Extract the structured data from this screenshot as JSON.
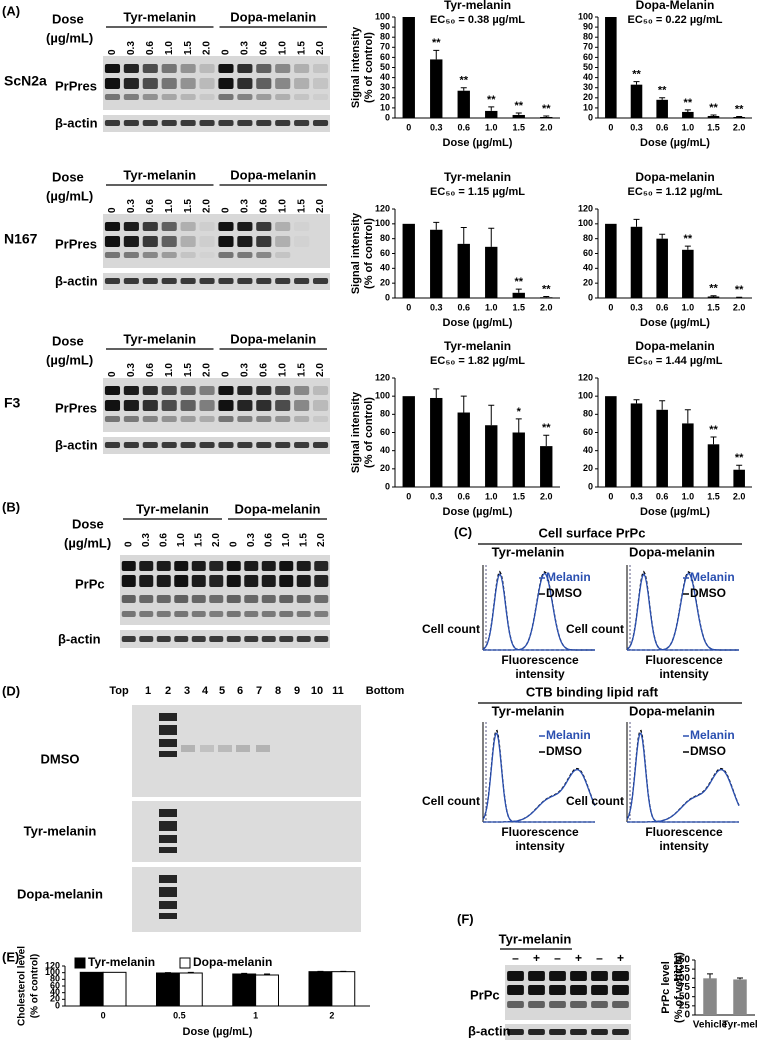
{
  "panel_labels": [
    "(A)",
    "(B)",
    "(C)",
    "(D)",
    "(E)",
    "(F)"
  ],
  "chart_data": [
    {
      "type": "bar",
      "title": "Tyr-melanin",
      "subtitle": "EC₅₀ = 0.38 µg/mL",
      "categories": [
        "0",
        "0.3",
        "0.6",
        "1.0",
        "1.5",
        "2.0"
      ],
      "values": [
        100,
        58,
        27,
        7,
        3,
        1
      ],
      "errors": [
        null,
        9,
        3,
        4,
        2,
        1
      ],
      "annotations": [
        null,
        "**",
        "**",
        "**",
        "**",
        "**"
      ],
      "ylabel": [
        "Signal intensity",
        "(% of control)"
      ],
      "xlabel": "Dose (µg/mL)",
      "ylim": [
        0,
        100
      ],
      "yticks": [
        0,
        10,
        20,
        30,
        40,
        50,
        60,
        70,
        80,
        90,
        100
      ],
      "color": "#000000"
    },
    {
      "type": "bar",
      "title": "Dopa-Melanin",
      "subtitle": "EC₅₀ = 0.22 µg/mL",
      "categories": [
        "0",
        "0.3",
        "0.6",
        "1.0",
        "1.5",
        "2.0"
      ],
      "values": [
        100,
        33,
        18,
        6,
        2,
        1
      ],
      "errors": [
        null,
        3,
        2,
        2,
        1,
        0.5
      ],
      "annotations": [
        null,
        "**",
        "**",
        "**",
        "**",
        "**"
      ],
      "xlabel": "Dose (µg/mL)",
      "ylim": [
        0,
        100
      ],
      "yticks": [
        0,
        10,
        20,
        30,
        40,
        50,
        60,
        70,
        80,
        90,
        100
      ],
      "color": "#000000"
    },
    {
      "type": "bar",
      "title": "Tyr-melanin",
      "subtitle": "EC₅₀ = 1.15 µg/mL",
      "categories": [
        "0",
        "0.3",
        "0.6",
        "1.0",
        "1.5",
        "2.0"
      ],
      "values": [
        100,
        92,
        73,
        69,
        7,
        1
      ],
      "errors": [
        null,
        10,
        22,
        25,
        5,
        1
      ],
      "annotations": [
        null,
        null,
        null,
        null,
        "**",
        "**"
      ],
      "ylabel": [
        "Signal intensity",
        "(% of control)"
      ],
      "xlabel": "Dose (µg/mL)",
      "ylim": [
        0,
        120
      ],
      "yticks": [
        0,
        20,
        40,
        60,
        80,
        100,
        120
      ],
      "color": "#000000"
    },
    {
      "type": "bar",
      "title": "Dopa-melanin",
      "subtitle": "EC₅₀ = 1.12 µg/mL",
      "categories": [
        "0",
        "0.3",
        "0.6",
        "1.0",
        "1.5",
        "2.0"
      ],
      "values": [
        100,
        96,
        80,
        65,
        2,
        0.5
      ],
      "errors": [
        null,
        10,
        6,
        5,
        1,
        0.5
      ],
      "annotations": [
        null,
        null,
        null,
        "**",
        "**",
        "**"
      ],
      "xlabel": "Dose (µg/mL)",
      "ylim": [
        0,
        120
      ],
      "yticks": [
        0,
        20,
        40,
        60,
        80,
        100,
        120
      ],
      "color": "#000000"
    },
    {
      "type": "bar",
      "title": "Tyr-melanin",
      "subtitle": "EC₅₀ = 1.82 µg/mL",
      "categories": [
        "0",
        "0.3",
        "0.6",
        "1.0",
        "1.5",
        "2.0"
      ],
      "values": [
        100,
        98,
        82,
        68,
        60,
        45
      ],
      "errors": [
        null,
        10,
        18,
        22,
        15,
        12
      ],
      "annotations": [
        null,
        null,
        null,
        null,
        "*",
        "**"
      ],
      "ylabel": [
        "Signal intensity",
        "(% of control)"
      ],
      "xlabel": "Dose (µg/mL)",
      "ylim": [
        0,
        120
      ],
      "yticks": [
        0,
        20,
        40,
        60,
        80,
        100,
        120
      ],
      "color": "#000000"
    },
    {
      "type": "bar",
      "title": "Dopa-melanin",
      "subtitle": "EC₅₀ = 1.44 µg/mL",
      "categories": [
        "0",
        "0.3",
        "0.6",
        "1.0",
        "1.5",
        "2.0"
      ],
      "values": [
        100,
        92,
        85,
        70,
        47,
        19
      ],
      "errors": [
        null,
        4,
        10,
        15,
        8,
        5
      ],
      "annotations": [
        null,
        null,
        null,
        null,
        "**",
        "**"
      ],
      "xlabel": "Dose (µg/mL)",
      "ylim": [
        0,
        120
      ],
      "yticks": [
        0,
        20,
        40,
        60,
        80,
        100,
        120
      ],
      "color": "#000000"
    },
    {
      "type": "grouped_bar",
      "categories": [
        "0",
        "0.5",
        "1",
        "2"
      ],
      "series": [
        {
          "name": "Tyr-melanin",
          "color": "#000000",
          "values": [
            101,
            99,
            96,
            103
          ],
          "errors": [
            null,
            1,
            2,
            1
          ]
        },
        {
          "name": "Dopa-melanin",
          "color": "#ffffff",
          "values": [
            101,
            99,
            93,
            103
          ],
          "errors": [
            null,
            2,
            3,
            1
          ]
        }
      ],
      "ylabel": [
        "Cholesterol level",
        "(% of control)"
      ],
      "xlabel": "Dose (µg/mL)",
      "ylim": [
        0,
        120
      ],
      "yticks": [
        0,
        20,
        40,
        60,
        80,
        100,
        120
      ]
    },
    {
      "type": "bar",
      "categories": [
        "Vehicle",
        "Tyr-mel"
      ],
      "values": [
        100,
        97
      ],
      "errors": [
        12,
        4
      ],
      "ylabel": [
        "PrPc level",
        "(% of vehicle)"
      ],
      "ylim": [
        0,
        150
      ],
      "yticks": [
        0,
        25,
        50,
        75,
        100,
        125,
        150
      ],
      "color": "#888888"
    }
  ],
  "panel_a": {
    "dose_label": [
      "Dose",
      "(µg/mL)"
    ],
    "groups": [
      "Tyr-melanin",
      "Dopa-melanin"
    ],
    "doses": [
      "0",
      "0.3",
      "0.6",
      "1.0",
      "1.5",
      "2.0"
    ],
    "rows": [
      {
        "cell_line": "ScN2a",
        "bands": [
          "PrPres",
          "β-actin"
        ]
      },
      {
        "cell_line": "N167",
        "bands": [
          "PrPres",
          "β-actin"
        ]
      },
      {
        "cell_line": "F3",
        "bands": [
          "PrPres",
          "β-actin"
        ]
      }
    ]
  },
  "panel_b": {
    "dose_label": [
      "Dose",
      "(µg/mL)"
    ],
    "groups": [
      "Tyr-melanin",
      "Dopa-melanin"
    ],
    "doses": [
      "0",
      "0.3",
      "0.6",
      "1.0",
      "1.5",
      "2.0"
    ],
    "bands": [
      "PrPc",
      "β-actin"
    ]
  },
  "panel_c": {
    "sections": [
      {
        "title": "Cell surface PrPc",
        "groups": [
          "Tyr-melanin",
          "Dopa-melanin"
        ]
      },
      {
        "title": "CTB binding lipid raft",
        "groups": [
          "Tyr-melanin",
          "Dopa-melanin"
        ]
      }
    ],
    "legend": [
      "Melanin",
      "DMSO"
    ],
    "ylabel": "Cell count",
    "xlabel": [
      "Fluorescence",
      "intensity"
    ]
  },
  "panel_d": {
    "fractions": [
      "Top",
      "1",
      "2",
      "3",
      "4",
      "5",
      "6",
      "7",
      "8",
      "9",
      "10",
      "11",
      "Bottom"
    ],
    "rows": [
      "DMSO",
      "Tyr-melanin",
      "Dopa-melanin"
    ]
  },
  "panel_f_blot": {
    "group": "Tyr-melanin",
    "treatments": [
      "–",
      "+",
      "–",
      "+",
      "–",
      "+"
    ],
    "bands": [
      "PrPc",
      "β-actin"
    ]
  }
}
